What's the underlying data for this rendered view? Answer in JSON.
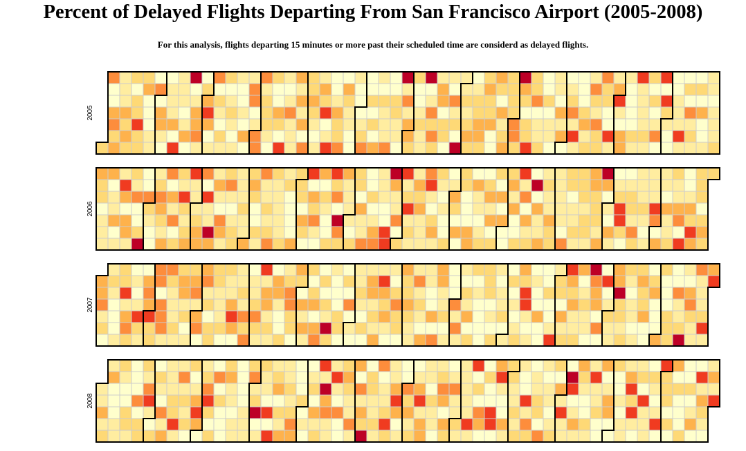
{
  "chart_data": {
    "type": "heatmap",
    "title": "Percent of Delayed Flights Departing From San Francisco Airport (2005-2008)",
    "subtitle": "For this analysis, flights departing 15 minutes or more past their scheduled time are considerd as delayed flights.",
    "layout": "calendar (rows = years, columns = weeks, cells = days)",
    "years": [
      "2005",
      "2006",
      "2007",
      "2008"
    ],
    "color_scale": {
      "levels": 7,
      "colors": [
        "#ffffcc",
        "#ffeda0",
        "#fed976",
        "#feb24c",
        "#fd8d3c",
        "#f03b20",
        "#bd0026"
      ]
    },
    "grid": true,
    "legend": "none"
  }
}
